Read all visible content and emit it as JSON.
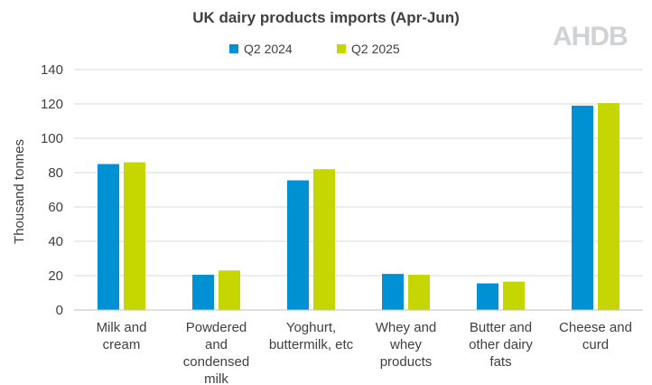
{
  "logo_text": "AHDB",
  "chart_data": {
    "type": "bar",
    "title": "UK dairy products imports (Apr-Jun)",
    "xlabel": "",
    "ylabel": "Thousand tonnes",
    "ylim": [
      0,
      140
    ],
    "yticks": [
      0,
      20,
      40,
      60,
      80,
      100,
      120,
      140
    ],
    "grid": true,
    "legend_position": "top",
    "categories": [
      [
        "Milk and",
        "cream"
      ],
      [
        "Powdered",
        "and",
        "condensed",
        "milk"
      ],
      [
        "Yoghurt,",
        "buttermilk, etc"
      ],
      [
        "Whey and",
        "whey",
        "products"
      ],
      [
        "Butter and",
        "other dairy",
        "fats"
      ],
      [
        "Cheese and",
        "curd"
      ]
    ],
    "series": [
      {
        "name": "Q2 2024",
        "color": "#0090d4",
        "values": [
          85,
          20.5,
          75.5,
          21,
          15.5,
          119
        ]
      },
      {
        "name": "Q2 2025",
        "color": "#c5d600",
        "values": [
          86,
          23,
          82,
          20.5,
          16.5,
          120.5
        ]
      }
    ]
  }
}
